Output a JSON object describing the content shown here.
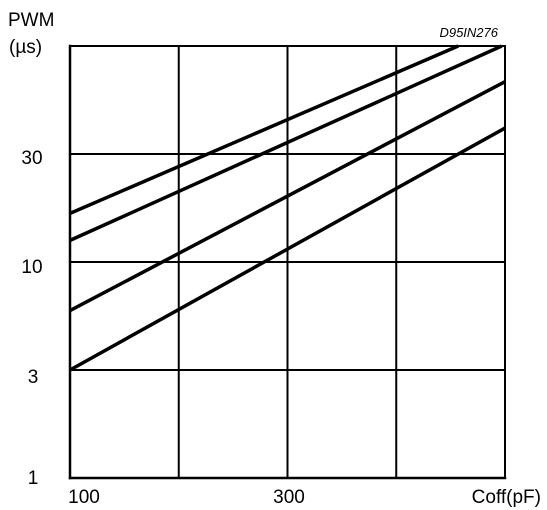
{
  "chart_data": {
    "type": "line",
    "code": "D95IN276",
    "ylabel_line1": "PWM",
    "ylabel_line2": "(µs)",
    "xlabel": "Coff(pF)",
    "x_tick_labels": [
      "100",
      "300"
    ],
    "y_tick_labels": [
      "30",
      "10",
      "3",
      "1"
    ],
    "grid": true,
    "x_columns": 4,
    "y_rows": 4,
    "series": [
      {
        "points": [
          [
            0.0,
            2.45
          ],
          [
            3.57,
            4.0
          ]
        ]
      },
      {
        "points": [
          [
            0.0,
            2.2
          ],
          [
            3.97,
            4.0
          ]
        ]
      },
      {
        "points": [
          [
            0.0,
            1.55
          ],
          [
            4.0,
            3.67
          ]
        ]
      },
      {
        "points": [
          [
            0.0,
            1.0
          ],
          [
            4.0,
            3.24
          ]
        ]
      }
    ]
  }
}
